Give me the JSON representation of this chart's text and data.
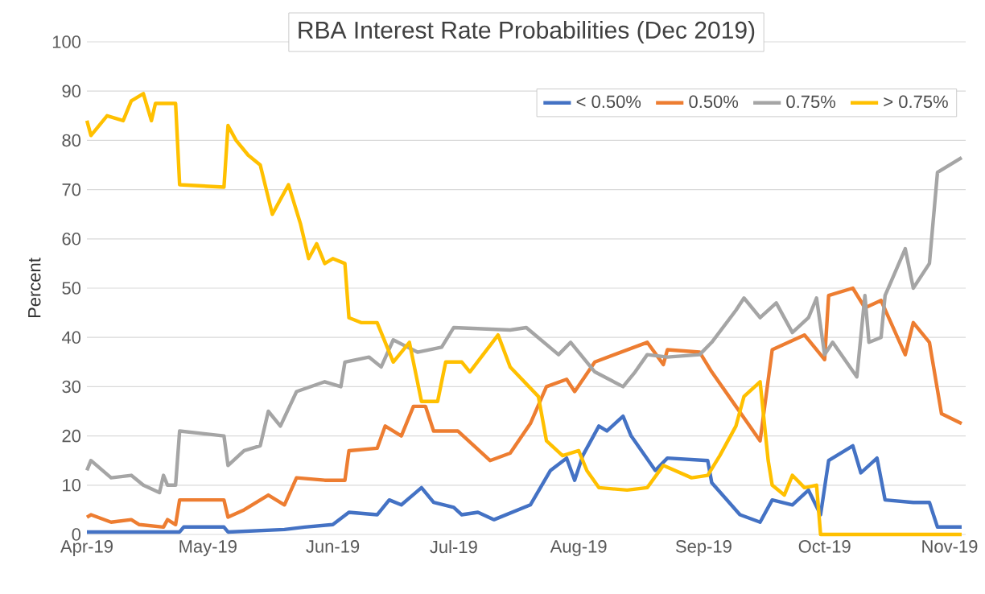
{
  "chart_data": {
    "type": "line",
    "title": "RBA Interest Rate Probabilities (Dec 2019)",
    "ylabel": "Percent",
    "xlim": [
      "2019-04-01",
      "2019-11-05"
    ],
    "xticks": [
      {
        "value": "2019-04-01",
        "label": "Apr-19"
      },
      {
        "value": "2019-05-01",
        "label": "May-19"
      },
      {
        "value": "2019-06-01",
        "label": "Jun-19"
      },
      {
        "value": "2019-07-01",
        "label": "Jul-19"
      },
      {
        "value": "2019-08-01",
        "label": "Aug-19"
      },
      {
        "value": "2019-09-01",
        "label": "Sep-19"
      },
      {
        "value": "2019-10-01",
        "label": "Oct-19"
      },
      {
        "value": "2019-11-01",
        "label": "Nov-19"
      }
    ],
    "ylim": [
      0,
      100
    ],
    "yticks": [
      0,
      10,
      20,
      30,
      40,
      50,
      60,
      70,
      80,
      90,
      100
    ],
    "grid": "y",
    "legend": "top right",
    "marker": "none",
    "line_style": "solid",
    "series": [
      {
        "name": "< 0.50%",
        "color": "#4472c4",
        "x": [
          "2019-04-01",
          "2019-04-24",
          "2019-04-25",
          "2019-05-05",
          "2019-05-06",
          "2019-05-20",
          "2019-05-25",
          "2019-06-01",
          "2019-06-05",
          "2019-06-12",
          "2019-06-15",
          "2019-06-18",
          "2019-06-23",
          "2019-06-26",
          "2019-07-01",
          "2019-07-03",
          "2019-07-07",
          "2019-07-11",
          "2019-07-20",
          "2019-07-25",
          "2019-07-29",
          "2019-07-31",
          "2019-08-02",
          "2019-08-06",
          "2019-08-08",
          "2019-08-12",
          "2019-08-14",
          "2019-08-20",
          "2019-08-23",
          "2019-09-02",
          "2019-09-03",
          "2019-09-10",
          "2019-09-15",
          "2019-09-18",
          "2019-09-23",
          "2019-09-27",
          "2019-09-30",
          "2019-10-02",
          "2019-10-08",
          "2019-10-10",
          "2019-10-14",
          "2019-10-16",
          "2019-10-23",
          "2019-10-27",
          "2019-10-29",
          "2019-11-04"
        ],
        "values": [
          0.5,
          0.5,
          1.5,
          1.5,
          0.5,
          1,
          1.5,
          2,
          4.5,
          4,
          7,
          6,
          9.5,
          6.5,
          5.5,
          4,
          4.5,
          3,
          6,
          13,
          15.5,
          11,
          16,
          22,
          21,
          24,
          20,
          13,
          15.5,
          15,
          10.5,
          4,
          2.5,
          7,
          6,
          9,
          4,
          15,
          18,
          12.5,
          15.5,
          7,
          6.5,
          6.5,
          1.5,
          1.5
        ]
      },
      {
        "name": "0.50%",
        "color": "#ed7d31",
        "x": [
          "2019-04-01",
          "2019-04-02",
          "2019-04-07",
          "2019-04-12",
          "2019-04-14",
          "2019-04-20",
          "2019-04-21",
          "2019-04-23",
          "2019-04-24",
          "2019-05-05",
          "2019-05-06",
          "2019-05-10",
          "2019-05-16",
          "2019-05-20",
          "2019-05-23",
          "2019-05-30",
          "2019-06-04",
          "2019-06-05",
          "2019-06-12",
          "2019-06-14",
          "2019-06-18",
          "2019-06-21",
          "2019-06-24",
          "2019-06-26",
          "2019-07-02",
          "2019-07-10",
          "2019-07-15",
          "2019-07-20",
          "2019-07-24",
          "2019-07-29",
          "2019-07-31",
          "2019-08-05",
          "2019-08-18",
          "2019-08-22",
          "2019-08-23",
          "2019-08-31",
          "2019-09-03",
          "2019-09-09",
          "2019-09-15",
          "2019-09-18",
          "2019-09-26",
          "2019-10-01",
          "2019-10-02",
          "2019-10-08",
          "2019-10-11",
          "2019-10-15",
          "2019-10-21",
          "2019-10-23",
          "2019-10-27",
          "2019-10-30",
          "2019-11-04"
        ],
        "values": [
          3.5,
          4,
          2.5,
          3,
          2,
          1.5,
          3,
          2,
          7,
          7,
          3.5,
          5,
          8,
          6,
          11.5,
          11,
          11,
          17,
          17.5,
          22,
          20,
          26,
          26,
          21,
          21,
          15,
          16.5,
          22.5,
          30,
          31.5,
          29,
          35,
          39,
          34.5,
          37.5,
          37,
          33,
          26,
          19,
          37.5,
          40.5,
          35.5,
          48.5,
          50,
          46,
          47.5,
          36.5,
          43,
          39,
          24.5,
          22.5
        ]
      },
      {
        "name": "0.75%",
        "color": "#a5a5a5",
        "x": [
          "2019-04-01",
          "2019-04-02",
          "2019-04-07",
          "2019-04-12",
          "2019-04-15",
          "2019-04-19",
          "2019-04-20",
          "2019-04-21",
          "2019-04-23",
          "2019-04-24",
          "2019-05-05",
          "2019-05-06",
          "2019-05-10",
          "2019-05-14",
          "2019-05-16",
          "2019-05-19",
          "2019-05-23",
          "2019-05-30",
          "2019-06-03",
          "2019-06-04",
          "2019-06-10",
          "2019-06-13",
          "2019-06-16",
          "2019-06-22",
          "2019-06-28",
          "2019-07-01",
          "2019-07-15",
          "2019-07-19",
          "2019-07-27",
          "2019-07-30",
          "2019-08-05",
          "2019-08-12",
          "2019-08-15",
          "2019-08-18",
          "2019-08-23",
          "2019-08-31",
          "2019-09-03",
          "2019-09-09",
          "2019-09-11",
          "2019-09-15",
          "2019-09-19",
          "2019-09-23",
          "2019-09-27",
          "2019-09-29",
          "2019-10-01",
          "2019-10-03",
          "2019-10-09",
          "2019-10-11",
          "2019-10-12",
          "2019-10-15",
          "2019-10-16",
          "2019-10-21",
          "2019-10-23",
          "2019-10-27",
          "2019-10-29",
          "2019-11-04"
        ],
        "values": [
          13,
          15,
          11.5,
          12,
          10,
          8.5,
          12,
          10,
          10,
          21,
          20,
          14,
          17,
          18,
          25,
          22,
          29,
          31,
          30,
          35,
          36,
          34,
          39.5,
          37,
          38,
          42,
          41.5,
          42,
          36.5,
          39,
          33,
          30,
          33,
          36.5,
          36,
          36.5,
          39,
          45.5,
          48,
          44,
          47,
          41,
          44,
          48,
          36.5,
          39,
          32,
          48.5,
          39,
          40,
          48.5,
          58,
          50,
          55,
          73.5,
          76.5
        ]
      },
      {
        "name": "> 0.75%",
        "color": "#ffc000",
        "x": [
          "2019-04-01",
          "2019-04-02",
          "2019-04-06",
          "2019-04-10",
          "2019-04-12",
          "2019-04-15",
          "2019-04-17",
          "2019-04-18",
          "2019-04-23",
          "2019-04-24",
          "2019-05-05",
          "2019-05-06",
          "2019-05-08",
          "2019-05-11",
          "2019-05-14",
          "2019-05-17",
          "2019-05-21",
          "2019-05-24",
          "2019-05-26",
          "2019-05-28",
          "2019-05-30",
          "2019-06-01",
          "2019-06-04",
          "2019-06-05",
          "2019-06-08",
          "2019-06-12",
          "2019-06-16",
          "2019-06-20",
          "2019-06-23",
          "2019-06-27",
          "2019-06-29",
          "2019-07-03",
          "2019-07-05",
          "2019-07-12",
          "2019-07-15",
          "2019-07-22",
          "2019-07-24",
          "2019-07-28",
          "2019-08-01",
          "2019-08-03",
          "2019-08-06",
          "2019-08-13",
          "2019-08-18",
          "2019-08-22",
          "2019-08-29",
          "2019-09-02",
          "2019-09-05",
          "2019-09-09",
          "2019-09-11",
          "2019-09-15",
          "2019-09-17",
          "2019-09-18",
          "2019-09-21",
          "2019-09-23",
          "2019-09-26",
          "2019-09-29",
          "2019-09-30",
          "2019-11-04"
        ],
        "values": [
          84,
          81,
          85,
          84,
          88,
          89.5,
          84,
          87.5,
          87.5,
          71,
          70.5,
          83,
          80,
          77,
          75,
          65,
          71,
          63,
          56,
          59,
          55,
          56,
          55,
          44,
          43,
          43,
          35,
          39,
          27,
          27,
          35,
          35,
          33,
          40.5,
          34,
          28,
          19,
          16,
          17,
          13,
          9.5,
          9,
          9.5,
          14,
          11.5,
          12,
          16,
          22,
          28,
          31,
          15,
          10,
          8,
          12,
          9.5,
          10,
          0,
          0
        ]
      }
    ]
  }
}
